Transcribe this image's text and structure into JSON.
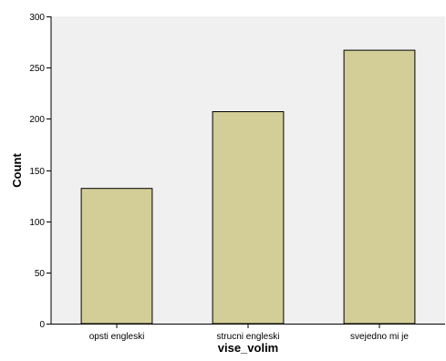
{
  "chart_data": {
    "type": "bar",
    "title": "",
    "xlabel": "vise_volim",
    "ylabel": "Count",
    "categories": [
      "opsti engleski",
      "strucni engleski",
      "svejedno mi je"
    ],
    "values": [
      132,
      207,
      267
    ],
    "ylim": [
      0,
      300
    ],
    "yticks": [
      0,
      50,
      100,
      150,
      200,
      250,
      300
    ],
    "grid": false,
    "legend": "none",
    "colors": {
      "plot_background": "#f0f0f0",
      "bar_fill": "#d3ce97",
      "bar_stroke": "#000000",
      "axis": "#000000"
    }
  }
}
